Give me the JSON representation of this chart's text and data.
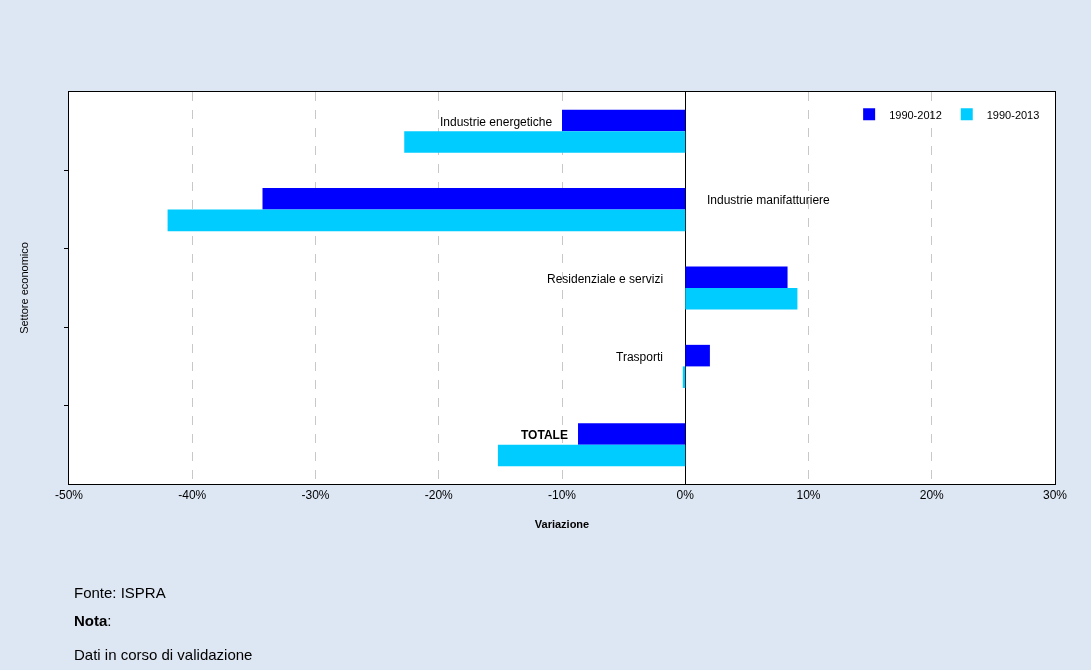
{
  "chart_data": {
    "type": "bar",
    "orientation": "horizontal",
    "xlabel": "Variazione",
    "ylabel": "Settore economico",
    "categories": [
      "Industrie energetiche",
      "Industrie manifatturiere",
      "Residenziale e servizi",
      "Trasporti",
      "TOTALE"
    ],
    "series": [
      {
        "name": "1990-2012",
        "color": "#0000ff",
        "values": [
          -10.0,
          -34.3,
          8.3,
          2.0,
          -8.7
        ]
      },
      {
        "name": "1990-2013",
        "color": "#00ccff",
        "values": [
          -22.8,
          -42.0,
          9.1,
          -0.2,
          -15.2
        ]
      }
    ],
    "xlim": [
      -50,
      30
    ],
    "xticks": [
      {
        "value": -50,
        "label": "-50%"
      },
      {
        "value": -40,
        "label": "-40%"
      },
      {
        "value": -30,
        "label": "-30%"
      },
      {
        "value": -20,
        "label": "-20%"
      },
      {
        "value": -10,
        "label": "-10%"
      },
      {
        "value": 0,
        "label": "0%"
      },
      {
        "value": 10,
        "label": "10%"
      },
      {
        "value": 20,
        "label": "20%"
      },
      {
        "value": 30,
        "label": "30%"
      }
    ],
    "grid": "x",
    "legend": "top right",
    "annotations": [
      "Fonte: ISPRA",
      "Nota:",
      "Dati in corso di validazione"
    ]
  }
}
